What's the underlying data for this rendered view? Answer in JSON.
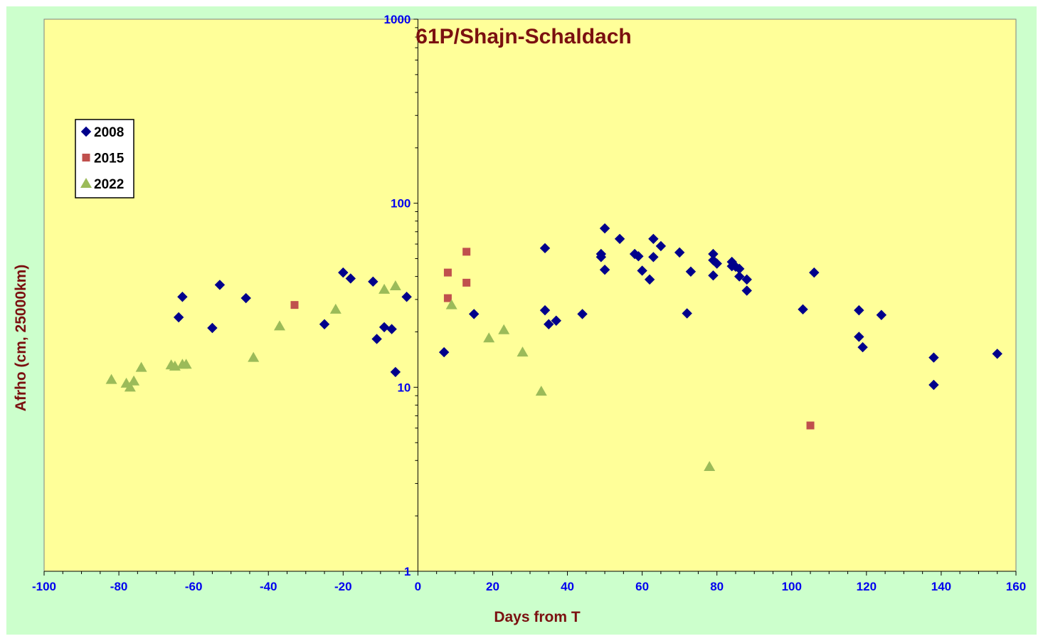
{
  "chart_data": {
    "type": "scatter",
    "title": "61P/Shajn-Schaldach",
    "xlabel": "Days from T",
    "ylabel": "Afrho (cm, 25000km)",
    "xlim": [
      -100,
      160
    ],
    "ylim": [
      1,
      1000
    ],
    "yscale": "log",
    "x_ticks": [
      "-100",
      "-80",
      "-60",
      "-40",
      "-20",
      "0",
      "20",
      "40",
      "60",
      "80",
      "100",
      "120",
      "140",
      "160"
    ],
    "y_ticks": [
      "1000",
      "100",
      "10",
      "1"
    ],
    "grid": false,
    "legend_position": "upper-left",
    "background": "#ffff99",
    "frame_background": "#ccffcc",
    "series": [
      {
        "name": "2008",
        "marker": "diamond",
        "color": "#00008b",
        "points": [
          [
            -64,
            24
          ],
          [
            -63,
            31
          ],
          [
            -55,
            21
          ],
          [
            -53,
            36
          ],
          [
            -46,
            30.5
          ],
          [
            -25,
            22
          ],
          [
            -20,
            42
          ],
          [
            -18,
            39
          ],
          [
            -12,
            37.5
          ],
          [
            -11,
            18.3
          ],
          [
            -9,
            21.2
          ],
          [
            -7,
            20.7
          ],
          [
            -6,
            12.1
          ],
          [
            -3,
            31
          ],
          [
            7,
            15.5
          ],
          [
            15,
            25
          ],
          [
            34,
            57
          ],
          [
            34,
            26.2
          ],
          [
            35,
            22
          ],
          [
            37,
            23
          ],
          [
            44,
            25
          ],
          [
            49,
            53
          ],
          [
            49,
            51
          ],
          [
            50,
            73
          ],
          [
            50,
            43.5
          ],
          [
            54,
            64
          ],
          [
            58,
            53
          ],
          [
            59,
            51.5
          ],
          [
            60,
            43
          ],
          [
            62,
            38.5
          ],
          [
            63,
            64
          ],
          [
            63,
            51
          ],
          [
            65,
            58.5
          ],
          [
            70,
            54
          ],
          [
            72,
            25.2
          ],
          [
            73,
            42.5
          ],
          [
            79,
            53
          ],
          [
            79,
            49
          ],
          [
            79,
            40.5
          ],
          [
            80,
            47
          ],
          [
            84,
            48
          ],
          [
            84,
            45.5
          ],
          [
            85,
            45.2
          ],
          [
            86,
            44
          ],
          [
            86,
            40
          ],
          [
            88,
            38.5
          ],
          [
            88,
            33.5
          ],
          [
            103,
            26.5
          ],
          [
            106,
            42
          ],
          [
            118,
            26.2
          ],
          [
            118,
            18.8
          ],
          [
            119,
            16.5
          ],
          [
            124,
            24.7
          ],
          [
            138,
            14.5
          ],
          [
            138,
            10.3
          ],
          [
            155,
            15.2
          ]
        ]
      },
      {
        "name": "2015",
        "marker": "square",
        "color": "#c0504d",
        "points": [
          [
            -33,
            28
          ],
          [
            8,
            42
          ],
          [
            8,
            30.5
          ],
          [
            13,
            54.5
          ],
          [
            13,
            37
          ],
          [
            105,
            6.2
          ]
        ]
      },
      {
        "name": "2022",
        "marker": "triangle",
        "color": "#9bbb59",
        "points": [
          [
            -82,
            11
          ],
          [
            -78,
            10.5
          ],
          [
            -77,
            10
          ],
          [
            -76,
            10.8
          ],
          [
            -74,
            12.8
          ],
          [
            -66,
            13.2
          ],
          [
            -65,
            13
          ],
          [
            -63,
            13.3
          ],
          [
            -62,
            13.3
          ],
          [
            -44,
            14.5
          ],
          [
            -37,
            21.5
          ],
          [
            -22,
            26.5
          ],
          [
            -9,
            34
          ],
          [
            -6,
            35.5
          ],
          [
            9,
            28
          ],
          [
            19,
            18.5
          ],
          [
            23,
            20.5
          ],
          [
            28,
            15.5
          ],
          [
            33,
            9.5
          ],
          [
            78,
            3.7
          ]
        ]
      }
    ]
  }
}
